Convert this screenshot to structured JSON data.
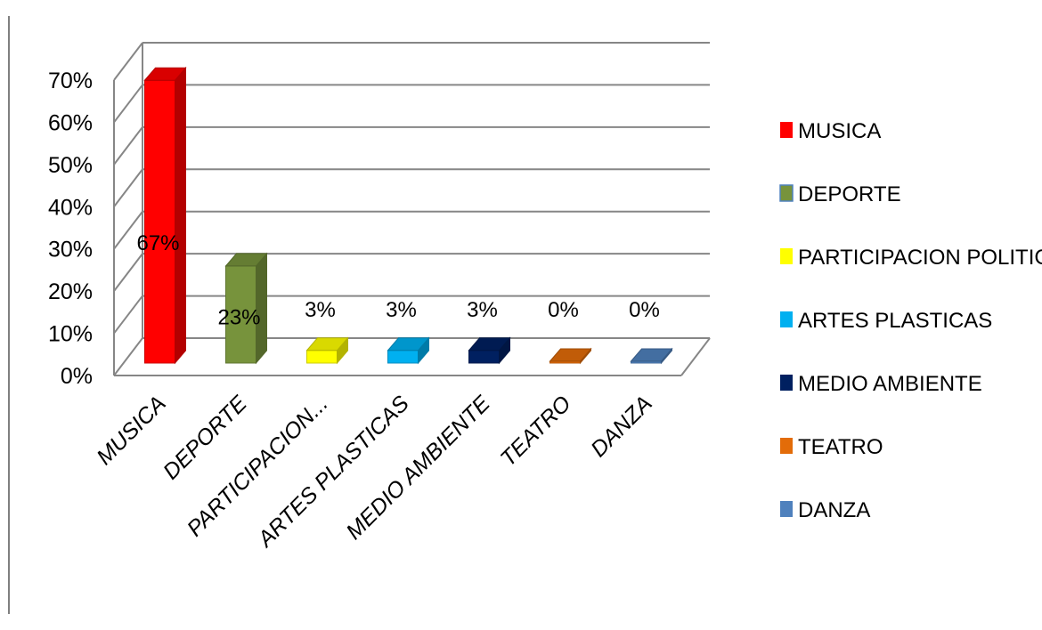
{
  "chart_data": {
    "type": "bar",
    "categories": [
      "MUSICA",
      "DEPORTE",
      "PARTICIPACION...",
      "ARTES PLASTICAS",
      "MEDIO AMBIENTE",
      "TEATRO",
      "DANZA"
    ],
    "values": [
      67,
      23,
      3,
      3,
      3,
      0,
      0
    ],
    "data_labels": [
      "67%",
      "23%",
      "3%",
      "3%",
      "3%",
      "0%",
      "0%"
    ],
    "colors": [
      "#ff0000",
      "#77933c",
      "#ffff00",
      "#00b0f0",
      "#002060",
      "#e36c09",
      "#4f81bd"
    ],
    "ylim": [
      0,
      70
    ],
    "yticks": [
      0,
      10,
      20,
      30,
      40,
      50,
      60,
      70
    ],
    "ytick_labels": [
      "0%",
      "10%",
      "20%",
      "30%",
      "40%",
      "50%",
      "60%",
      "70%"
    ],
    "grid": true,
    "style": "3d-column",
    "legend": {
      "position": "right",
      "entries": [
        "MUSICA",
        "DEPORTE",
        "PARTICIPACION POLITICA",
        "ARTES PLASTICAS",
        "MEDIO AMBIENTE",
        "TEATRO",
        "DANZA"
      ]
    }
  }
}
